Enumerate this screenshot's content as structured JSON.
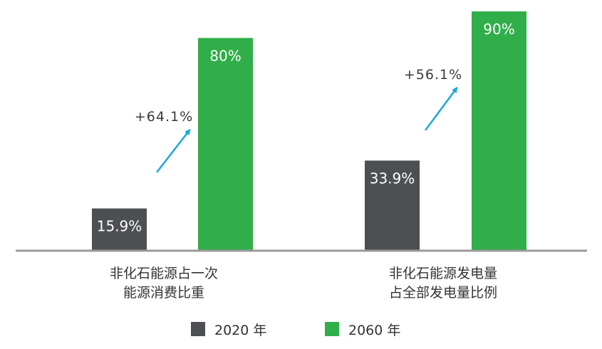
{
  "chart_data": {
    "type": "bar",
    "categories": [
      [
        "非化石能源占一次",
        "能源消费比重"
      ],
      [
        "非化石能源发电量",
        "占全部发电量比例"
      ]
    ],
    "series": [
      {
        "name": "2020 年",
        "color": "#4d4f52",
        "values": [
          15.9,
          33.9
        ],
        "labels": [
          "15.9%",
          "33.9%"
        ]
      },
      {
        "name": "2060 年",
        "color": "#2fae49",
        "values": [
          80,
          90
        ],
        "labels": [
          "80%",
          "90%"
        ]
      }
    ],
    "annotations": [
      {
        "category_index": 0,
        "text": "+64.1%",
        "arrow_color": "#1aa7e0"
      },
      {
        "category_index": 1,
        "text": "+56.1%",
        "arrow_color": "#1aa7e0"
      }
    ],
    "ylim": [
      0,
      90
    ],
    "title": "",
    "xlabel": "",
    "ylabel": "",
    "grid": false,
    "legend_position": "bottom-center"
  }
}
